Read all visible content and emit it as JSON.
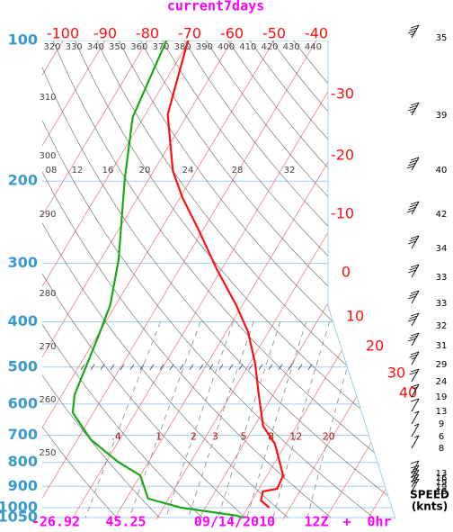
{
  "chart_data": {
    "type": "skewt",
    "title": "current7days",
    "ylim": [
      100,
      1050
    ],
    "yticks": [
      100,
      200,
      300,
      400,
      500,
      600,
      700,
      800,
      900,
      1000,
      1050
    ],
    "log_scale": true,
    "isotherms_top": [
      -100,
      -90,
      -80,
      -70,
      -60,
      -50,
      -40
    ],
    "isotherms_right": [
      -30,
      -20,
      -10,
      0,
      10,
      20,
      30,
      40
    ],
    "dry_adiabats_top": [
      320,
      330,
      340,
      350,
      360,
      370,
      380,
      390,
      400,
      410,
      420,
      430,
      440
    ],
    "dry_adiabats_left": [
      310,
      300,
      290,
      280,
      270,
      260,
      250
    ],
    "upper_labels": [
      {
        "value": 8,
        "label": "08"
      },
      12,
      16,
      20,
      24,
      28,
      32
    ],
    "mixing_ratio": [
      {
        "value": 0.4,
        "label": ".4"
      },
      1,
      2,
      3,
      5,
      8,
      12,
      20
    ],
    "temperature": {
      "color": "#ff1010",
      "pressure": [
        100,
        144,
        190,
        217,
        253,
        309,
        368,
        420,
        491,
        573,
        669,
        730,
        853,
        911,
        923,
        965,
        1000
      ],
      "values": [
        -70.4,
        -64.7,
        -55.5,
        -49.4,
        -41.3,
        -31.1,
        -21.5,
        -14.9,
        -8.7,
        -3.4,
        2.1,
        7.4,
        13.8,
        14.3,
        11.3,
        12.1,
        15.1
      ]
    },
    "dewpoint": {
      "color": "#18a818",
      "pressure": [
        100,
        146,
        198,
        295,
        368,
        424,
        573,
        626,
        715,
        798,
        853,
        956,
        1000,
        1040,
        1050
      ],
      "values": [
        -75.5,
        -72.6,
        -65.7,
        -55.7,
        -51.3,
        -49.8,
        -47,
        -44.9,
        -36.8,
        -27.2,
        -20,
        -14.9,
        -5.7,
        8.5,
        10.4
      ]
    },
    "wind": {
      "label": "SPEED",
      "unit": "(knts)",
      "values": [
        35,
        39,
        40,
        42,
        34,
        33,
        33,
        32,
        31,
        29,
        24,
        19,
        13,
        9,
        6,
        8,
        13,
        16,
        19,
        19,
        18
      ]
    },
    "footer": {
      "lat": -26.92,
      "lon": 45.25,
      "date": "09/14/2010",
      "time": "12Z",
      "plus": "+",
      "forecast": "0hr"
    }
  }
}
